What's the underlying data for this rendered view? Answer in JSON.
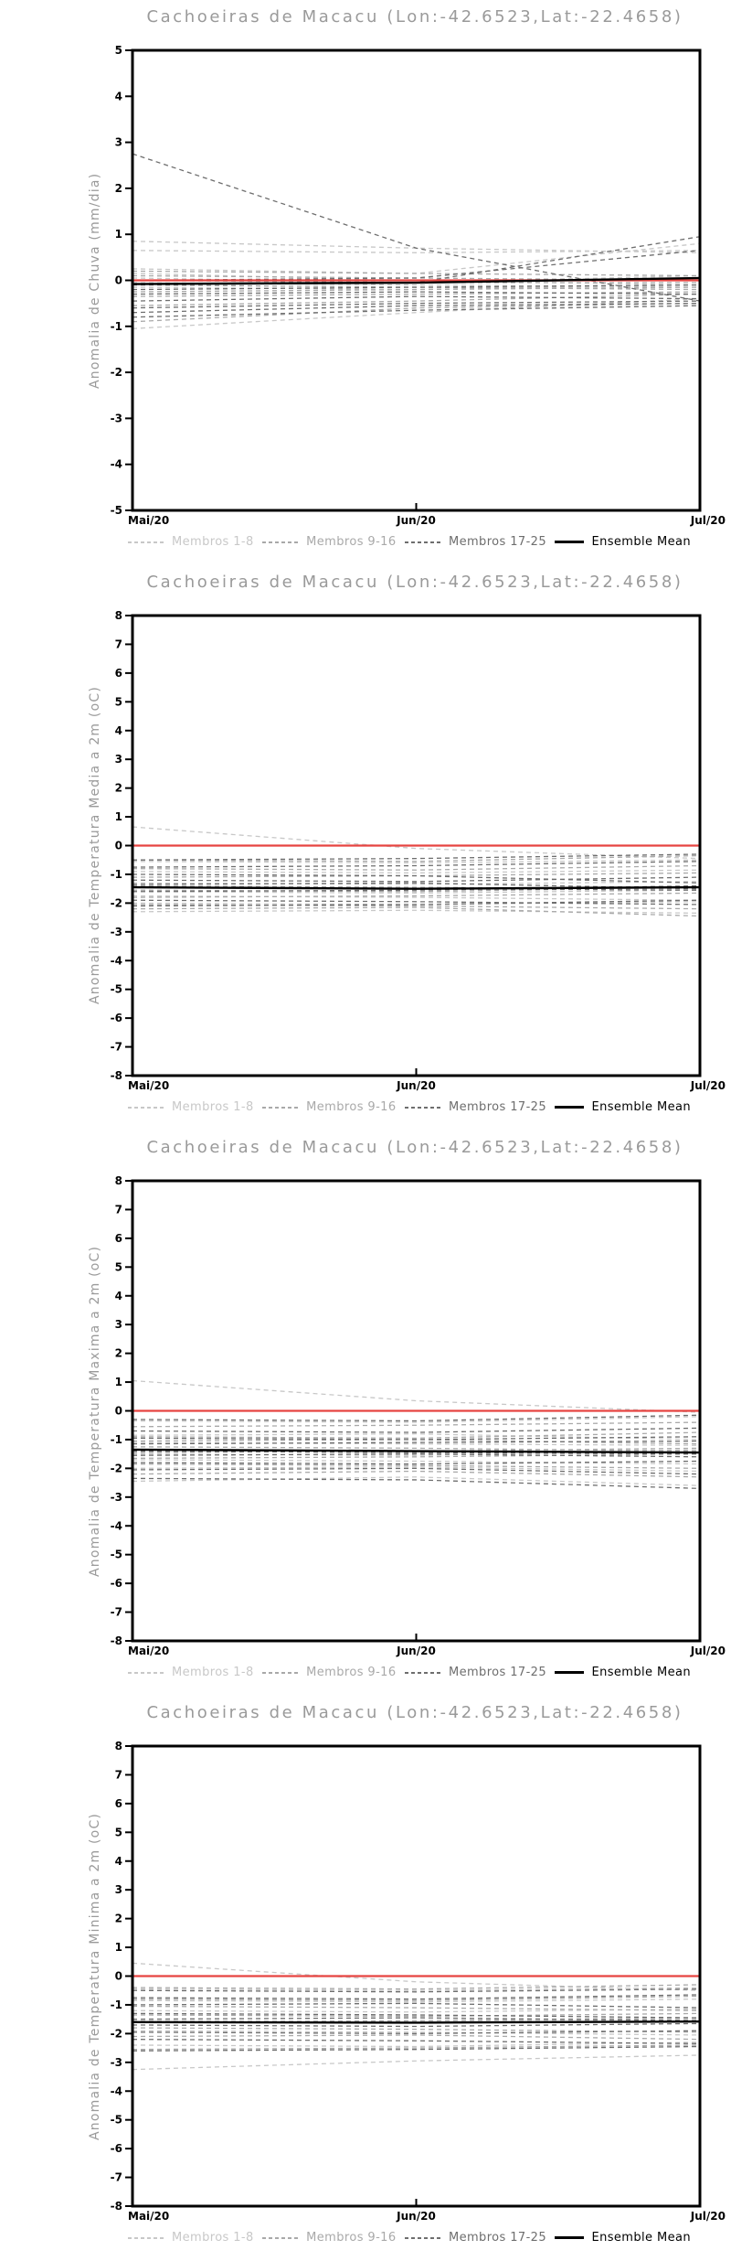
{
  "shared": {
    "x_ticks": [
      "Mai/20",
      "Jun/20",
      "Jul/20"
    ],
    "legend": [
      {
        "label": "Membros 1-8",
        "group": "g1"
      },
      {
        "label": "Membros 9-16",
        "group": "g2"
      },
      {
        "label": "Membros 17-25",
        "group": "g3"
      },
      {
        "label": "Ensemble Mean",
        "group": "mean"
      }
    ],
    "colors": {
      "g1": "#c8c8c8",
      "g2": "#a9a9a9",
      "g3": "#6e6e6e",
      "mean": "#000000",
      "zero_line": "#e64441",
      "frame": "#000000",
      "title": "#9a9a9a",
      "tick_label": "#000000"
    }
  },
  "chart_data": [
    {
      "type": "line",
      "title": "Cachoeiras de Macacu (Lon:-42.6523,Lat:-22.4658)",
      "ylabel": "Anomalia de Chuva (mm/dia)",
      "xlabel": "",
      "x": [
        "Mai/20",
        "Jun/20",
        "Jul/20"
      ],
      "ylim": [
        -5,
        5
      ],
      "ytick_step": 1,
      "zero_line": 0,
      "grid": false,
      "legend_position": "bottom",
      "series": [
        {
          "name": "Membro 1",
          "group": "g1",
          "values": [
            0.85,
            0.7,
            0.6
          ]
        },
        {
          "name": "Membro 2",
          "group": "g1",
          "values": [
            0.65,
            0.6,
            0.65
          ]
        },
        {
          "name": "Membro 3",
          "group": "g1",
          "values": [
            0.25,
            0.15,
            0.8
          ]
        },
        {
          "name": "Membro 4",
          "group": "g1",
          "values": [
            0.15,
            0.0,
            -0.1
          ]
        },
        {
          "name": "Membro 5",
          "group": "g1",
          "values": [
            0.05,
            -0.05,
            0.1
          ]
        },
        {
          "name": "Membro 6",
          "group": "g1",
          "values": [
            -0.05,
            -0.1,
            -0.15
          ]
        },
        {
          "name": "Membro 7",
          "group": "g1",
          "values": [
            -0.15,
            -0.2,
            -0.1
          ]
        },
        {
          "name": "Membro 8",
          "group": "g1",
          "values": [
            -1.05,
            -0.7,
            -0.4
          ]
        },
        {
          "name": "Membro 9",
          "group": "g2",
          "values": [
            0.2,
            0.15,
            0.1
          ]
        },
        {
          "name": "Membro 10",
          "group": "g2",
          "values": [
            0.1,
            0.05,
            0.0
          ]
        },
        {
          "name": "Membro 11",
          "group": "g2",
          "values": [
            0.0,
            -0.05,
            -0.05
          ]
        },
        {
          "name": "Membro 12",
          "group": "g2",
          "values": [
            -0.1,
            -0.15,
            -0.2
          ]
        },
        {
          "name": "Membro 13",
          "group": "g2",
          "values": [
            -0.25,
            -0.2,
            -0.15
          ]
        },
        {
          "name": "Membro 14",
          "group": "g2",
          "values": [
            -0.35,
            -0.3,
            -0.25
          ]
        },
        {
          "name": "Membro 15",
          "group": "g2",
          "values": [
            -0.55,
            -0.45,
            -0.3
          ]
        },
        {
          "name": "Membro 16",
          "group": "g2",
          "values": [
            -0.9,
            -0.6,
            -0.5
          ]
        },
        {
          "name": "Membro 17",
          "group": "g3",
          "values": [
            2.75,
            0.7,
            -0.45
          ]
        },
        {
          "name": "Membro 18",
          "group": "g3",
          "values": [
            -0.1,
            -0.05,
            0.95
          ]
        },
        {
          "name": "Membro 19",
          "group": "g3",
          "values": [
            0.0,
            0.05,
            0.65
          ]
        },
        {
          "name": "Membro 20",
          "group": "g3",
          "values": [
            -0.2,
            -0.15,
            -0.1
          ]
        },
        {
          "name": "Membro 21",
          "group": "g3",
          "values": [
            -0.3,
            -0.25,
            -0.3
          ]
        },
        {
          "name": "Membro 22",
          "group": "g3",
          "values": [
            -0.45,
            -0.35,
            -0.4
          ]
        },
        {
          "name": "Membro 23",
          "group": "g3",
          "values": [
            -0.6,
            -0.5,
            -0.45
          ]
        },
        {
          "name": "Membro 24",
          "group": "g3",
          "values": [
            -0.7,
            -0.55,
            -0.5
          ]
        },
        {
          "name": "Membro 25",
          "group": "g3",
          "values": [
            -0.8,
            -0.65,
            -0.55
          ]
        },
        {
          "name": "Ensemble Mean",
          "group": "mean",
          "values": [
            -0.08,
            -0.05,
            0.05
          ]
        }
      ]
    },
    {
      "type": "line",
      "title": "Cachoeiras de Macacu (Lon:-42.6523,Lat:-22.4658)",
      "ylabel": "Anomalia de Temperatura Media a 2m (oC)",
      "xlabel": "",
      "x": [
        "Mai/20",
        "Jun/20",
        "Jul/20"
      ],
      "ylim": [
        -8,
        8
      ],
      "ytick_step": 1,
      "zero_line": 0,
      "grid": false,
      "legend_position": "bottom",
      "series": [
        {
          "name": "Membro 1",
          "group": "g1",
          "values": [
            0.65,
            -0.1,
            -0.45
          ]
        },
        {
          "name": "Membro 2",
          "group": "g1",
          "values": [
            -0.55,
            -0.6,
            -0.5
          ]
        },
        {
          "name": "Membro 3",
          "group": "g1",
          "values": [
            -0.9,
            -0.95,
            -0.85
          ]
        },
        {
          "name": "Membro 4",
          "group": "g1",
          "values": [
            -1.3,
            -1.35,
            -1.25
          ]
        },
        {
          "name": "Membro 5",
          "group": "g1",
          "values": [
            -1.6,
            -1.65,
            -1.55
          ]
        },
        {
          "name": "Membro 6",
          "group": "g1",
          "values": [
            -1.75,
            -1.8,
            -1.9
          ]
        },
        {
          "name": "Membro 7",
          "group": "g1",
          "values": [
            -2.0,
            -2.05,
            -1.95
          ]
        },
        {
          "name": "Membro 8",
          "group": "g1",
          "values": [
            -2.3,
            -2.25,
            -2.35
          ]
        },
        {
          "name": "Membro 9",
          "group": "g2",
          "values": [
            -0.5,
            -0.55,
            -0.35
          ]
        },
        {
          "name": "Membro 10",
          "group": "g2",
          "values": [
            -0.8,
            -0.85,
            -0.7
          ]
        },
        {
          "name": "Membro 11",
          "group": "g2",
          "values": [
            -1.1,
            -1.05,
            -0.95
          ]
        },
        {
          "name": "Membro 12",
          "group": "g2",
          "values": [
            -1.4,
            -1.45,
            -1.5
          ]
        },
        {
          "name": "Membro 13",
          "group": "g2",
          "values": [
            -1.55,
            -1.6,
            -1.45
          ]
        },
        {
          "name": "Membro 14",
          "group": "g2",
          "values": [
            -1.8,
            -1.75,
            -1.65
          ]
        },
        {
          "name": "Membro 15",
          "group": "g2",
          "values": [
            -2.05,
            -2.1,
            -2.2
          ]
        },
        {
          "name": "Membro 16",
          "group": "g2",
          "values": [
            -2.2,
            -2.15,
            -2.45
          ]
        },
        {
          "name": "Membro 17",
          "group": "g3",
          "values": [
            -0.5,
            -0.45,
            -0.3
          ]
        },
        {
          "name": "Membro 18",
          "group": "g3",
          "values": [
            -0.75,
            -0.7,
            -0.55
          ]
        },
        {
          "name": "Membro 19",
          "group": "g3",
          "values": [
            -1.0,
            -1.05,
            -1.3
          ]
        },
        {
          "name": "Membro 20",
          "group": "g3",
          "values": [
            -1.2,
            -1.25,
            -1.1
          ]
        },
        {
          "name": "Membro 21",
          "group": "g3",
          "values": [
            -1.45,
            -1.5,
            -1.55
          ]
        },
        {
          "name": "Membro 22",
          "group": "g3",
          "values": [
            -1.6,
            -1.55,
            -1.4
          ]
        },
        {
          "name": "Membro 23",
          "group": "g3",
          "values": [
            -1.9,
            -1.95,
            -2.05
          ]
        },
        {
          "name": "Membro 24",
          "group": "g3",
          "values": [
            -2.1,
            -2.05,
            -1.9
          ]
        },
        {
          "name": "Membro 25",
          "group": "g3",
          "values": [
            -1.35,
            -1.3,
            -1.5
          ]
        },
        {
          "name": "Ensemble Mean",
          "group": "mean",
          "values": [
            -1.45,
            -1.5,
            -1.45
          ]
        }
      ]
    },
    {
      "type": "line",
      "title": "Cachoeiras de Macacu (Lon:-42.6523,Lat:-22.4658)",
      "ylabel": "Anomalia de Temperatura Maxima a 2m (oC)",
      "xlabel": "",
      "x": [
        "Mai/20",
        "Jun/20",
        "Jul/20"
      ],
      "ylim": [
        -8,
        8
      ],
      "ytick_step": 1,
      "zero_line": 0,
      "grid": false,
      "legend_position": "bottom",
      "series": [
        {
          "name": "Membro 1",
          "group": "g1",
          "values": [
            1.05,
            0.35,
            -0.05
          ]
        },
        {
          "name": "Membro 2",
          "group": "g1",
          "values": [
            -0.35,
            -0.4,
            -0.2
          ]
        },
        {
          "name": "Membro 3",
          "group": "g1",
          "values": [
            -0.85,
            -0.8,
            -1.0
          ]
        },
        {
          "name": "Membro 4",
          "group": "g1",
          "values": [
            -1.1,
            -1.15,
            -1.2
          ]
        },
        {
          "name": "Membro 5",
          "group": "g1",
          "values": [
            -1.5,
            -1.55,
            -1.35
          ]
        },
        {
          "name": "Membro 6",
          "group": "g1",
          "values": [
            -1.7,
            -1.75,
            -1.85
          ]
        },
        {
          "name": "Membro 7",
          "group": "g1",
          "values": [
            -2.0,
            -1.95,
            -2.1
          ]
        },
        {
          "name": "Membro 8",
          "group": "g1",
          "values": [
            -2.45,
            -2.3,
            -2.6
          ]
        },
        {
          "name": "Membro 9",
          "group": "g2",
          "values": [
            -0.55,
            -0.5,
            -0.4
          ]
        },
        {
          "name": "Membro 10",
          "group": "g2",
          "values": [
            -0.9,
            -0.95,
            -0.75
          ]
        },
        {
          "name": "Membro 11",
          "group": "g2",
          "values": [
            -1.05,
            -1.0,
            -1.15
          ]
        },
        {
          "name": "Membro 12",
          "group": "g2",
          "values": [
            -1.25,
            -1.3,
            -1.4
          ]
        },
        {
          "name": "Membro 13",
          "group": "g2",
          "values": [
            -1.45,
            -1.4,
            -1.3
          ]
        },
        {
          "name": "Membro 14",
          "group": "g2",
          "values": [
            -1.65,
            -1.6,
            -1.5
          ]
        },
        {
          "name": "Membro 15",
          "group": "g2",
          "values": [
            -1.85,
            -1.9,
            -2.0
          ]
        },
        {
          "name": "Membro 16",
          "group": "g2",
          "values": [
            -2.2,
            -2.1,
            -2.3
          ]
        },
        {
          "name": "Membro 17",
          "group": "g3",
          "values": [
            -0.3,
            -0.35,
            -0.15
          ]
        },
        {
          "name": "Membro 18",
          "group": "g3",
          "values": [
            -0.7,
            -0.75,
            -0.6
          ]
        },
        {
          "name": "Membro 19",
          "group": "g3",
          "values": [
            -0.95,
            -1.0,
            -0.9
          ]
        },
        {
          "name": "Membro 20",
          "group": "g3",
          "values": [
            -1.15,
            -1.1,
            -1.05
          ]
        },
        {
          "name": "Membro 21",
          "group": "g3",
          "values": [
            -1.4,
            -1.45,
            -1.5
          ]
        },
        {
          "name": "Membro 22",
          "group": "g3",
          "values": [
            -1.55,
            -1.5,
            -1.6
          ]
        },
        {
          "name": "Membro 23",
          "group": "g3",
          "values": [
            -1.8,
            -1.85,
            -1.75
          ]
        },
        {
          "name": "Membro 24",
          "group": "g3",
          "values": [
            -2.05,
            -2.0,
            -2.2
          ]
        },
        {
          "name": "Membro 25",
          "group": "g3",
          "values": [
            -2.35,
            -2.4,
            -2.7
          ]
        },
        {
          "name": "Ensemble Mean",
          "group": "mean",
          "values": [
            -1.35,
            -1.4,
            -1.45
          ]
        }
      ]
    },
    {
      "type": "line",
      "title": "Cachoeiras de Macacu (Lon:-42.6523,Lat:-22.4658)",
      "ylabel": "Anomalia de Temperatura Minima a 2m (oC)",
      "xlabel": "",
      "x": [
        "Mai/20",
        "Jun/20",
        "Jul/20"
      ],
      "ylim": [
        -8,
        8
      ],
      "ytick_step": 1,
      "zero_line": 0,
      "grid": false,
      "legend_position": "bottom",
      "series": [
        {
          "name": "Membro 1",
          "group": "g1",
          "values": [
            0.45,
            -0.2,
            -0.5
          ]
        },
        {
          "name": "Membro 2",
          "group": "g1",
          "values": [
            -0.45,
            -0.5,
            -0.4
          ]
        },
        {
          "name": "Membro 3",
          "group": "g1",
          "values": [
            -0.85,
            -0.9,
            -0.8
          ]
        },
        {
          "name": "Membro 4",
          "group": "g1",
          "values": [
            -1.2,
            -1.25,
            -1.15
          ]
        },
        {
          "name": "Membro 5",
          "group": "g1",
          "values": [
            -1.55,
            -1.6,
            -1.5
          ]
        },
        {
          "name": "Membro 6",
          "group": "g1",
          "values": [
            -1.9,
            -1.95,
            -2.05
          ]
        },
        {
          "name": "Membro 7",
          "group": "g1",
          "values": [
            -2.4,
            -2.45,
            -2.3
          ]
        },
        {
          "name": "Membro 8",
          "group": "g1",
          "values": [
            -3.25,
            -2.95,
            -2.75
          ]
        },
        {
          "name": "Membro 9",
          "group": "g2",
          "values": [
            -0.4,
            -0.45,
            -0.3
          ]
        },
        {
          "name": "Membro 10",
          "group": "g2",
          "values": [
            -0.8,
            -0.85,
            -0.7
          ]
        },
        {
          "name": "Membro 11",
          "group": "g2",
          "values": [
            -1.05,
            -1.1,
            -1.2
          ]
        },
        {
          "name": "Membro 12",
          "group": "g2",
          "values": [
            -1.35,
            -1.4,
            -1.3
          ]
        },
        {
          "name": "Membro 13",
          "group": "g2",
          "values": [
            -1.6,
            -1.55,
            -1.45
          ]
        },
        {
          "name": "Membro 14",
          "group": "g2",
          "values": [
            -1.8,
            -1.85,
            -1.95
          ]
        },
        {
          "name": "Membro 15",
          "group": "g2",
          "values": [
            -2.1,
            -2.05,
            -2.2
          ]
        },
        {
          "name": "Membro 16",
          "group": "g2",
          "values": [
            -2.55,
            -2.5,
            -2.4
          ]
        },
        {
          "name": "Membro 17",
          "group": "g3",
          "values": [
            -0.5,
            -0.55,
            -0.45
          ]
        },
        {
          "name": "Membro 18",
          "group": "g3",
          "values": [
            -0.75,
            -0.8,
            -0.65
          ]
        },
        {
          "name": "Membro 19",
          "group": "g3",
          "values": [
            -1.0,
            -0.95,
            -1.1
          ]
        },
        {
          "name": "Membro 20",
          "group": "g3",
          "values": [
            -1.3,
            -1.35,
            -1.45
          ]
        },
        {
          "name": "Membro 21",
          "group": "g3",
          "values": [
            -1.5,
            -1.45,
            -1.55
          ]
        },
        {
          "name": "Membro 22",
          "group": "g3",
          "values": [
            -1.7,
            -1.75,
            -1.65
          ]
        },
        {
          "name": "Membro 23",
          "group": "g3",
          "values": [
            -1.95,
            -2.0,
            -1.9
          ]
        },
        {
          "name": "Membro 24",
          "group": "g3",
          "values": [
            -2.2,
            -2.25,
            -2.35
          ]
        },
        {
          "name": "Membro 25",
          "group": "g3",
          "values": [
            -2.6,
            -2.55,
            -2.45
          ]
        },
        {
          "name": "Ensemble Mean",
          "group": "mean",
          "values": [
            -1.6,
            -1.62,
            -1.58
          ]
        }
      ]
    }
  ]
}
